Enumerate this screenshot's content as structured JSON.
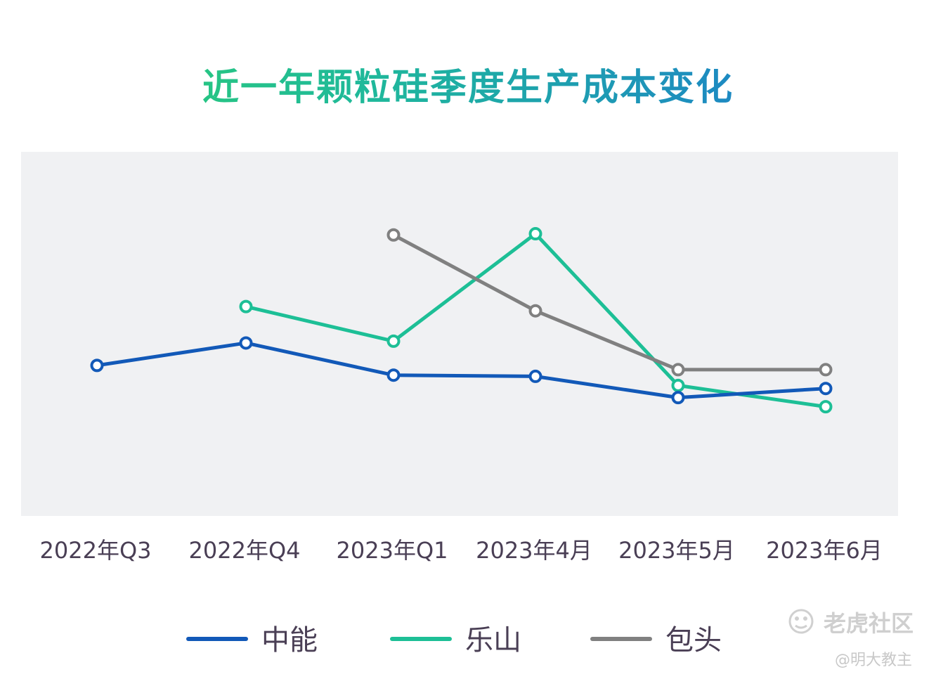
{
  "chart_data": {
    "type": "line",
    "title": "近一年颗粒硅季度生产成本变化",
    "categories": [
      "2022年Q3",
      "2022年Q4",
      "2023年Q1",
      "2023年4月",
      "2023年5月",
      "2023年6月"
    ],
    "series": [
      {
        "name": "中能",
        "color": "#1259b8",
        "values": [
          54.8,
          58.5,
          53.2,
          53.0,
          49.5,
          51.0
        ]
      },
      {
        "name": "乐山",
        "color": "#1dbf96",
        "values": [
          null,
          64.5,
          58.8,
          76.5,
          51.5,
          48.0
        ]
      },
      {
        "name": "包头",
        "color": "#808080",
        "values": [
          null,
          null,
          76.3,
          63.8,
          54.1,
          54.1
        ]
      }
    ],
    "ylim": [
      30,
      90
    ],
    "xlabel": "",
    "ylabel": "",
    "grid": false,
    "legend_position": "bottom",
    "plot_background": "#f0f1f3"
  },
  "watermark": {
    "logo_text": "老虎社区",
    "author": "@明大教主",
    "icon": "tiger-paw-icon"
  }
}
